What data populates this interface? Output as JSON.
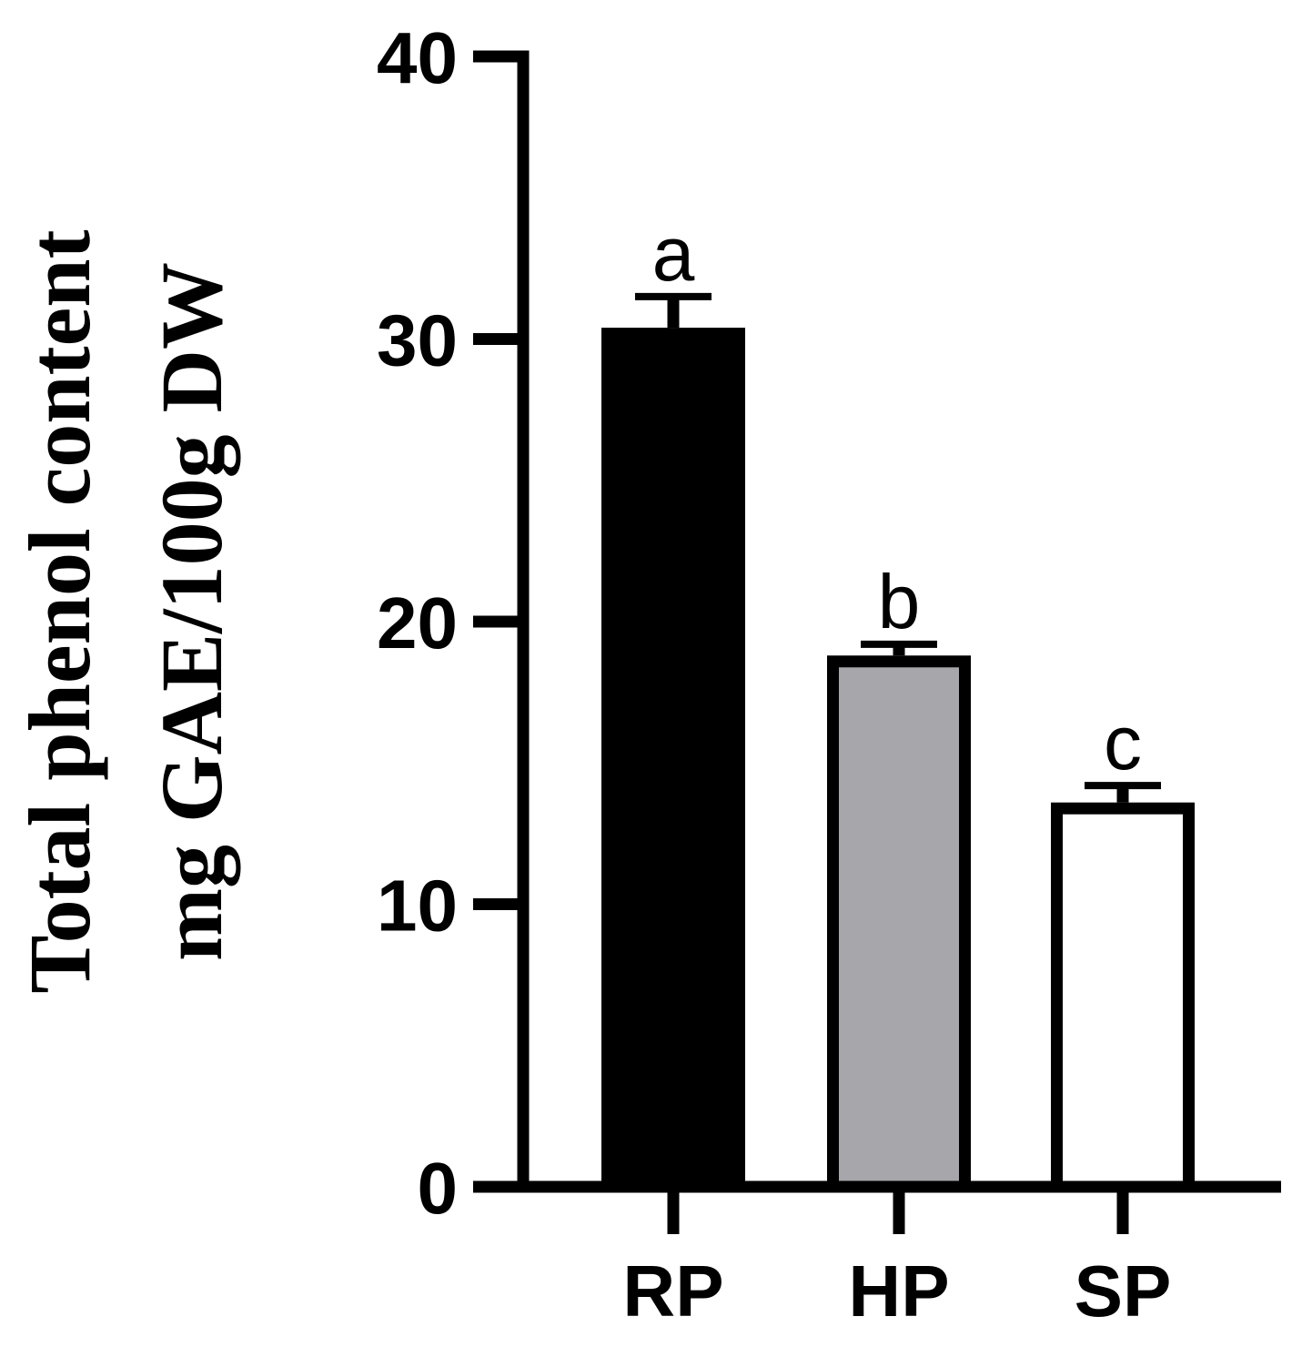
{
  "chart_data": {
    "type": "bar",
    "title": "",
    "xlabel": "",
    "ylabel": "Total phenol content",
    "ylabel_unit": "mg GAE/100g DW",
    "categories": [
      "RP",
      "HP",
      "SP"
    ],
    "values": [
      30.4,
      18.8,
      13.6
    ],
    "errors": [
      1.1,
      0.4,
      0.6
    ],
    "significance_letters": [
      "a",
      "b",
      "c"
    ],
    "bar_fill_colors": [
      "#000000",
      "#a7a6aa",
      "#ffffff"
    ],
    "bar_edge_color": "#000000",
    "ylim": [
      0,
      40
    ],
    "yticks": [
      0,
      10,
      20,
      30,
      40
    ],
    "grid": false,
    "legend": "none"
  }
}
